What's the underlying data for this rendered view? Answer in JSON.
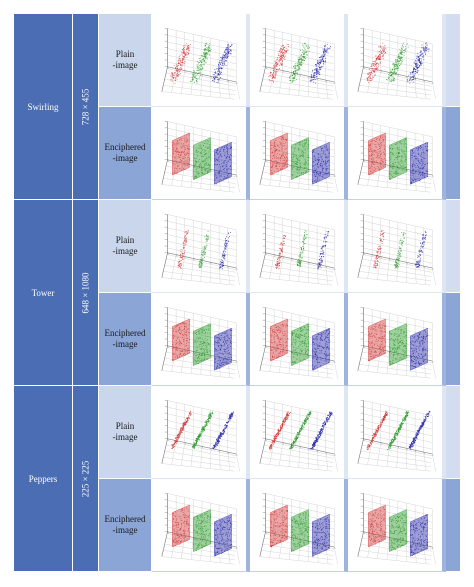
{
  "rows": [
    {
      "name": "Swirling",
      "size": "728 × 455",
      "variants": [
        {
          "label": "Plain\n-image",
          "kind": "plain",
          "pattern": "spread"
        },
        {
          "label": "Enciphered\n-image",
          "kind": "enciphered",
          "pattern": "planes"
        }
      ]
    },
    {
      "name": "Tower",
      "size": "648 × 1080",
      "variants": [
        {
          "label": "Plain\n-image",
          "kind": "plain",
          "pattern": "sparse"
        },
        {
          "label": "Enciphered\n-image",
          "kind": "enciphered",
          "pattern": "planes"
        }
      ]
    },
    {
      "name": "Peppers",
      "size": "225 × 225",
      "variants": [
        {
          "label": "Plain\n-image",
          "kind": "plain",
          "pattern": "diagonal"
        },
        {
          "label": "Enciphered\n-image",
          "kind": "enciphered",
          "pattern": "planes"
        }
      ]
    }
  ],
  "colors": {
    "name_column": "#4a6db3",
    "size_column": "#4a6db3",
    "plain_label": "#c9d6ec",
    "enciphered_label": "#8aa5d6",
    "plot_background": "#ffffff",
    "channel_red": "#d23a3a",
    "channel_green": "#2a9a2a",
    "channel_blue": "#2a2aa8"
  },
  "plot_columns": 3
}
